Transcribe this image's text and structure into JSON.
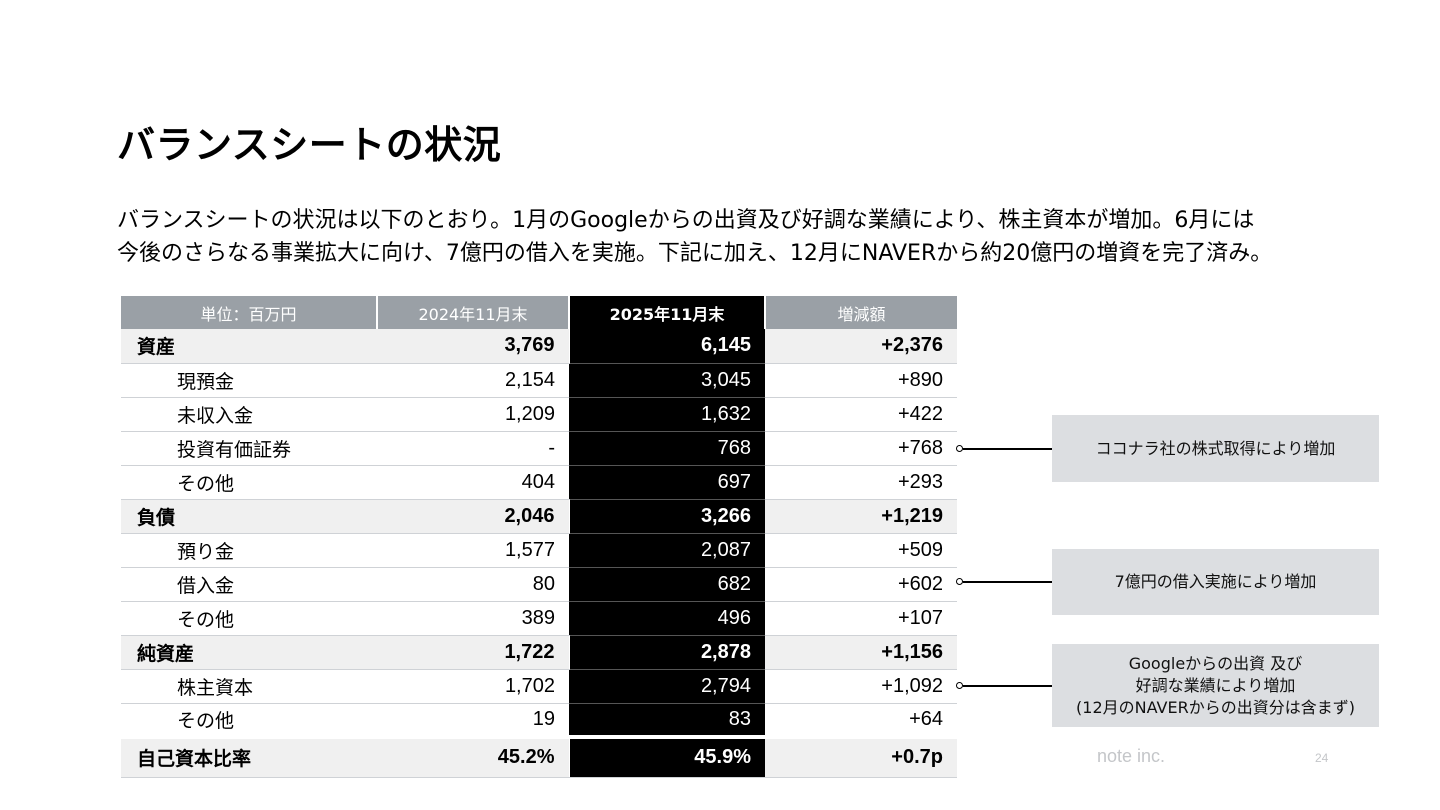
{
  "title": "バランスシートの状況",
  "description": [
    "バランスシートの状況は以下のとおり。1月のGoogleからの出資及び好調な業績により、株主資本が増加。6月には",
    "今後のさらなる事業拡大に向け、7億円の借入を実施。下記に加え、12月にNAVERから約20億円の増資を完了済み。"
  ],
  "table": {
    "headers": [
      "単位：百万円",
      "2024年11月末",
      "2025年11月末",
      "増減額"
    ],
    "rows": [
      {
        "label": "資産",
        "level": "major",
        "v2024": "3,769",
        "v2025": "6,145",
        "diff": "+2,376"
      },
      {
        "label": "現預金",
        "level": "sub",
        "v2024": "2,154",
        "v2025": "3,045",
        "diff": "+890"
      },
      {
        "label": "未収入金",
        "level": "sub",
        "v2024": "1,209",
        "v2025": "1,632",
        "diff": "+422"
      },
      {
        "label": "投資有価証券",
        "level": "sub",
        "v2024": "-",
        "v2025": "768",
        "diff": "+768"
      },
      {
        "label": "その他",
        "level": "sub",
        "v2024": "404",
        "v2025": "697",
        "diff": "+293"
      },
      {
        "label": "負債",
        "level": "major",
        "v2024": "2,046",
        "v2025": "3,266",
        "diff": "+1,219"
      },
      {
        "label": "預り金",
        "level": "sub",
        "v2024": "1,577",
        "v2025": "2,087",
        "diff": "+509"
      },
      {
        "label": "借入金",
        "level": "sub",
        "v2024": "80",
        "v2025": "682",
        "diff": "+602"
      },
      {
        "label": "その他",
        "level": "sub",
        "v2024": "389",
        "v2025": "496",
        "diff": "+107"
      },
      {
        "label": "純資産",
        "level": "major",
        "v2024": "1,722",
        "v2025": "2,878",
        "diff": "+1,156"
      },
      {
        "label": "株主資本",
        "level": "sub",
        "v2024": "1,702",
        "v2025": "2,794",
        "diff": "+1,092"
      },
      {
        "label": "その他",
        "level": "sub",
        "v2024": "19",
        "v2025": "83",
        "diff": "+64"
      }
    ],
    "ratio": {
      "label": "自己資本比率",
      "v2024": "45.2%",
      "v2025": "45.9%",
      "diff": "+0.7p"
    }
  },
  "annotations": [
    {
      "text": [
        "ココナラ社の株式取得により増加"
      ]
    },
    {
      "text": [
        "7億円の借入実施により増加"
      ]
    },
    {
      "text": [
        "Googleからの出資 及び",
        "好調な業績により増加",
        "(12月のNAVERからの出資分は含まず)"
      ]
    }
  ],
  "footer": {
    "company": "note inc.",
    "page": "24"
  },
  "colors": {
    "header_gray": "#9aa0a6",
    "highlight": "#000000",
    "note_box": "#dcdee1",
    "major_row": "#f0f0f0"
  }
}
